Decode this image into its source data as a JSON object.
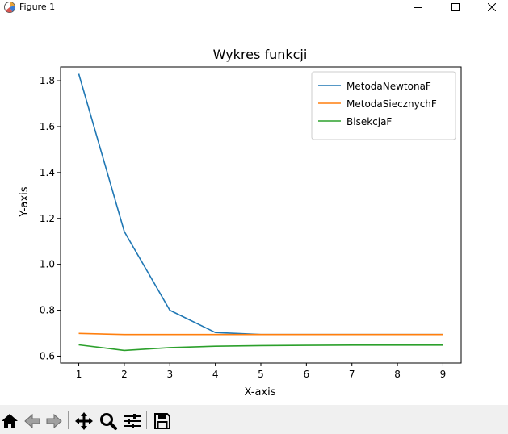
{
  "window": {
    "title": "Figure 1"
  },
  "toolbar": {
    "buttons": [
      "home-icon",
      "back-arrow-icon",
      "forward-arrow-icon",
      "pan-icon",
      "zoom-icon",
      "configure-subplots-icon",
      "save-icon"
    ]
  },
  "chart_data": {
    "type": "line",
    "title": "Wykres funkcji",
    "xlabel": "X-axis",
    "ylabel": "Y-axis",
    "xlim": [
      0.6,
      9.4
    ],
    "ylim": [
      0.57,
      1.86
    ],
    "xticks": [
      1,
      2,
      3,
      4,
      5,
      6,
      7,
      8,
      9
    ],
    "yticks": [
      0.6,
      0.8,
      1.0,
      1.2,
      1.4,
      1.6,
      1.8
    ],
    "ytick_labels": [
      "0.6",
      "0.8",
      "1.0",
      "1.2",
      "1.4",
      "1.6",
      "1.8"
    ],
    "grid": false,
    "legend_position": "top-right",
    "x": [
      1,
      2,
      3,
      4,
      5,
      6,
      7,
      8,
      9
    ],
    "series": [
      {
        "name": "MetodaNewtonaF",
        "color": "#1f77b4",
        "values": [
          1.83,
          1.143,
          0.8,
          0.703,
          0.694,
          0.694,
          0.694,
          0.694,
          0.694
        ]
      },
      {
        "name": "MetodaSiecznychF",
        "color": "#ff7f0e",
        "values": [
          0.699,
          0.694,
          0.694,
          0.694,
          0.694,
          0.694,
          0.694,
          0.694,
          0.694
        ]
      },
      {
        "name": "BisekcjaF",
        "color": "#2ca02c",
        "values": [
          0.649,
          0.625,
          0.637,
          0.643,
          0.646,
          0.647,
          0.648,
          0.648,
          0.648
        ]
      }
    ]
  }
}
